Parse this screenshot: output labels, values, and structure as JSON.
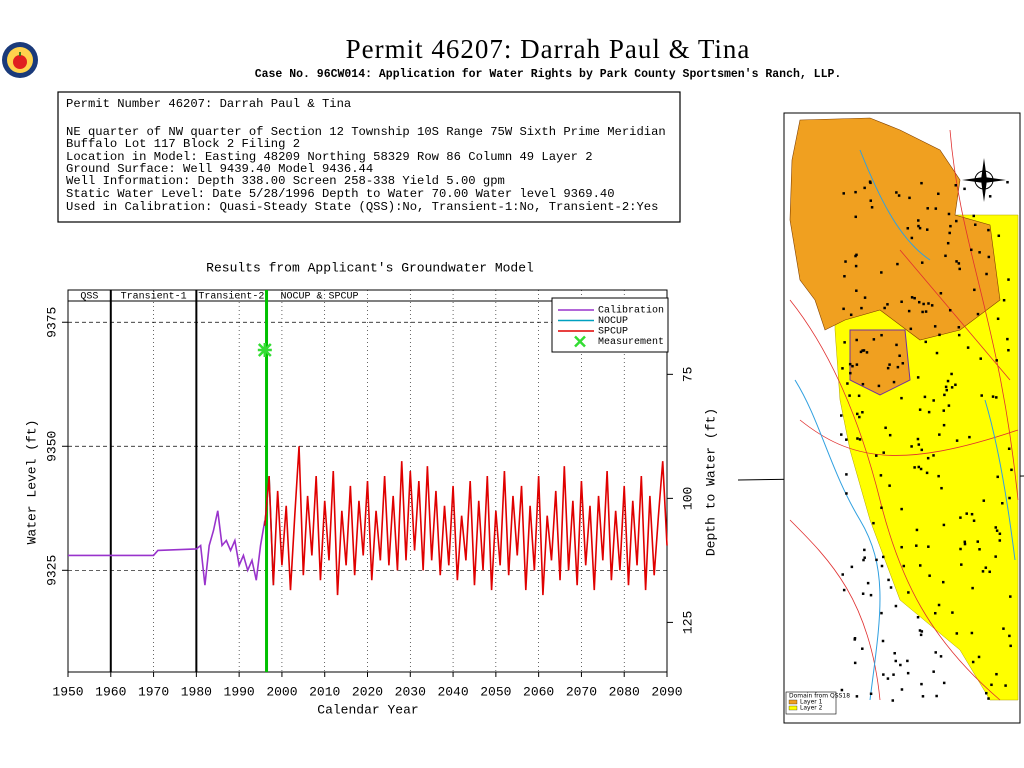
{
  "header": {
    "title": "Permit 46207:  Darrah Paul & Tina",
    "subtitle": "Case No. 96CW014: Application for Water Rights by Park County Sportsmen's Ranch, LLP."
  },
  "info": [
    "Permit Number 46207: Darrah Paul & Tina",
    "NE quarter of NW quarter of Section 12 Township 10S Range 75W Sixth Prime Meridian",
    "Buffalo Lot 117 Block 2 Filing 2",
    "Location in Model: Easting 48209 Northing  58329 Row  86 Column 49 Layer 2",
    "Ground Surface: Well  9439.40 Model  9436.44",
    "Well Information: Depth   338.00 Screen 258-338 Yield     5.00 gpm",
    "Static Water Level: Date  5/28/1996 Depth to Water    70.00 Water level  9369.40",
    "Used in Calibration: Quasi-Steady State (QSS):No, Transient-1:No, Transient-2:Yes"
  ],
  "chart_data": {
    "type": "line",
    "title": "Results from Applicant's Groundwater Model",
    "x_label": "Calendar Year",
    "y_label": "Water Level (ft)",
    "y2_label": "Depth to Water (ft)",
    "xlim": [
      1950,
      2090
    ],
    "xticks": [
      1950,
      1960,
      1970,
      1980,
      1990,
      2000,
      2010,
      2020,
      2030,
      2040,
      2050,
      2060,
      2070,
      2080,
      2090
    ],
    "ylim": [
      9304.5,
      9381.5
    ],
    "yticks": [
      9325,
      9350,
      9375
    ],
    "y2lim": [
      135,
      58
    ],
    "y2ticks": [
      75,
      100,
      125
    ],
    "grid": true,
    "legend": "upper right",
    "periods": [
      {
        "label": "QSS",
        "x0": 1950,
        "x1": 1960,
        "boundary_color": "#000000"
      },
      {
        "label": "Transient-1",
        "x0": 1960,
        "x1": 1980,
        "boundary_color": "#000000"
      },
      {
        "label": "Transient-2",
        "x0": 1980,
        "x1": 1996.4,
        "boundary_color": "#00c000"
      },
      {
        "label": "NOCUP  &  SPCUP",
        "x0": 1996.4,
        "x1": 2090,
        "boundary_color": "#000000"
      }
    ],
    "series": [
      {
        "name": "Calibration",
        "color": "#9933cc",
        "mode": "line",
        "x": [
          1950,
          1970,
          1971,
          1980,
          1981,
          1982,
          1983,
          1984,
          1985,
          1986,
          1987,
          1988,
          1989,
          1990,
          1991,
          1992,
          1993,
          1994,
          1995,
          1996
        ],
        "values": [
          9328,
          9328,
          9329,
          9329.3,
          9330,
          9322,
          9330,
          9333,
          9337,
          9330,
          9331,
          9329,
          9331,
          9326,
          9328,
          9325,
          9327,
          9323,
          9330,
          9335
        ]
      },
      {
        "name": "NOCUP",
        "color": "#00a0c0",
        "mode": "line",
        "x": [
          1996,
          1997,
          1998
        ],
        "values": [
          9334,
          9344,
          9322
        ]
      },
      {
        "name": "SPCUP",
        "color": "#e00000",
        "mode": "line",
        "x": [
          1996,
          1997,
          1998,
          1999,
          2000,
          2001,
          2002,
          2003,
          2004,
          2005,
          2006,
          2007,
          2008,
          2009,
          2010,
          2011,
          2012,
          2013,
          2014,
          2015,
          2016,
          2017,
          2018,
          2019,
          2020,
          2021,
          2022,
          2023,
          2024,
          2025,
          2026,
          2027,
          2028,
          2029,
          2030,
          2031,
          2032,
          2033,
          2034,
          2035,
          2036,
          2037,
          2038,
          2039,
          2040,
          2041,
          2042,
          2043,
          2044,
          2045,
          2046,
          2047,
          2048,
          2049,
          2050,
          2051,
          2052,
          2053,
          2054,
          2055,
          2056,
          2057,
          2058,
          2059,
          2060,
          2061,
          2062,
          2063,
          2064,
          2065,
          2066,
          2067,
          2068,
          2069,
          2070,
          2071,
          2072,
          2073,
          2074,
          2075,
          2076,
          2077,
          2078,
          2079,
          2080,
          2081,
          2082,
          2083,
          2084,
          2085,
          2086,
          2087,
          2088,
          2089,
          2090
        ],
        "values": [
          9334,
          9344,
          9322,
          9341,
          9326,
          9338,
          9321,
          9336,
          9350,
          9324,
          9340,
          9328,
          9344,
          9323,
          9339,
          9327,
          9345,
          9320,
          9337,
          9326,
          9342,
          9324,
          9339,
          9328,
          9343,
          9323,
          9337,
          9327,
          9344,
          9326,
          9340,
          9325,
          9347,
          9327,
          9345,
          9329,
          9343,
          9325,
          9346,
          9327,
          9341,
          9324,
          9338,
          9326,
          9342,
          9323,
          9336,
          9327,
          9343,
          9322,
          9339,
          9325,
          9344,
          9321,
          9337,
          9326,
          9345,
          9324,
          9340,
          9328,
          9342,
          9321,
          9338,
          9325,
          9344,
          9320,
          9336,
          9327,
          9341,
          9323,
          9346,
          9325,
          9339,
          9322,
          9343,
          9326,
          9338,
          9321,
          9340,
          9327,
          9345,
          9323,
          9337,
          9325,
          9342,
          9322,
          9339,
          9326,
          9344,
          9321,
          9340,
          9324,
          9336,
          9347,
          9330
        ]
      },
      {
        "name": "Measurement",
        "color": "#33dd33",
        "mode": "point",
        "x": [
          1996
        ],
        "values": [
          9369.4
        ]
      }
    ]
  },
  "map": {
    "legend_title": "Domain from QSS18",
    "layers": [
      {
        "name": "Layer 1",
        "color": "#f0a020"
      },
      {
        "name": "Layer 2",
        "color": "#ffff00"
      }
    ]
  }
}
